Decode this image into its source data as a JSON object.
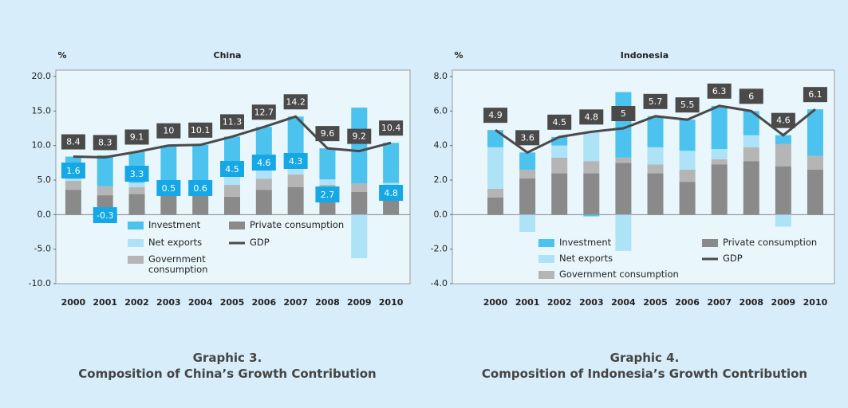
{
  "chart_data": [
    {
      "type": "bar",
      "title": "China",
      "y_label": "%",
      "caption_number": "Graphic 3.",
      "caption": "Composition of China’s Growth Contribution",
      "categories": [
        "2000",
        "2001",
        "2002",
        "2003",
        "2004",
        "2005",
        "2006",
        "2007",
        "2008",
        "2009",
        "2010"
      ],
      "series": [
        {
          "name": "Investment",
          "color": "#4cc3ee",
          "values": [
            3.2,
            4.5,
            4.5,
            6.3,
            6.0,
            4.2,
            5.0,
            5.8,
            4.5,
            11.0,
            5.8
          ]
        },
        {
          "name": "Net exports",
          "color": "#aee2f6",
          "values": [
            0.3,
            -0.3,
            0.6,
            0.2,
            0.6,
            2.8,
            2.5,
            2.6,
            0.8,
            -6.3,
            0.7
          ]
        },
        {
          "name": "Government consumption",
          "color": "#b5b5b5",
          "values": [
            1.3,
            1.3,
            1.0,
            0.8,
            0.7,
            1.7,
            1.6,
            1.8,
            1.2,
            1.2,
            1.8
          ]
        },
        {
          "name": "Private consumption",
          "color": "#8a8a8a",
          "values": [
            3.6,
            2.8,
            3.0,
            2.7,
            2.8,
            2.6,
            3.6,
            4.0,
            3.1,
            3.3,
            2.1
          ]
        },
        {
          "name": "GDP",
          "type": "line",
          "color": "#4a4a4a",
          "values": [
            8.4,
            8.3,
            9.1,
            10.0,
            10.1,
            11.3,
            12.7,
            14.2,
            9.6,
            9.2,
            10.4
          ]
        }
      ],
      "box_labels": [
        1.6,
        -0.3,
        3.3,
        0.5,
        0.6,
        4.5,
        4.6,
        4.3,
        2.7,
        null,
        4.8
      ],
      "ylim": [
        -10,
        20
      ],
      "yticks": [
        {
          "value": -10,
          "label": "-10.0"
        },
        {
          "value": -5,
          "label": "-5.0"
        },
        {
          "value": 0,
          "label": "0.0"
        },
        {
          "value": 5,
          "label": "5.0"
        },
        {
          "value": 10,
          "label": "10.0"
        },
        {
          "value": 15,
          "label": "15.0"
        },
        {
          "value": 20,
          "label": "20.0"
        }
      ]
    },
    {
      "type": "bar",
      "title": "Indonesia",
      "y_label": "%",
      "caption_number": "Graphic 4.",
      "caption": "Composition of Indonesia’s Growth Contribution",
      "categories": [
        "2000",
        "2001",
        "2002",
        "2003",
        "2004",
        "2005",
        "2006",
        "2007",
        "2008",
        "2009",
        "2010"
      ],
      "series": [
        {
          "name": "Investment",
          "color": "#4cc3ee",
          "values": [
            1.0,
            1.0,
            0.5,
            -0.1,
            3.8,
            1.8,
            1.8,
            2.5,
            1.4,
            0.5,
            2.7
          ]
        },
        {
          "name": "Net exports",
          "color": "#aee2f6",
          "values": [
            2.4,
            -1.0,
            0.7,
            1.7,
            -2.1,
            1.0,
            1.1,
            0.6,
            0.7,
            -0.7,
            0.0
          ]
        },
        {
          "name": "Government consumption",
          "color": "#b5b5b5",
          "values": [
            0.5,
            0.5,
            0.9,
            0.7,
            0.3,
            0.5,
            0.7,
            0.3,
            0.8,
            1.3,
            0.8
          ]
        },
        {
          "name": "Private consumption",
          "color": "#8a8a8a",
          "values": [
            1.0,
            2.1,
            2.4,
            2.4,
            3.0,
            2.4,
            1.9,
            2.9,
            3.1,
            2.8,
            2.6
          ]
        },
        {
          "name": "GDP",
          "type": "line",
          "color": "#4a4a4a",
          "values": [
            4.9,
            3.6,
            4.5,
            4.8,
            5.0,
            5.7,
            5.5,
            6.3,
            6.0,
            4.6,
            6.1
          ]
        }
      ],
      "ylim": [
        -4,
        8
      ],
      "yticks": [
        {
          "value": -4,
          "label": "-4.0"
        },
        {
          "value": -2,
          "label": "-2.0"
        },
        {
          "value": 0,
          "label": "0.0"
        },
        {
          "value": 2,
          "label": "2.0"
        },
        {
          "value": 4,
          "label": "4.0"
        },
        {
          "value": 6,
          "label": "6.0"
        },
        {
          "value": 8,
          "label": "8.0"
        }
      ]
    }
  ]
}
